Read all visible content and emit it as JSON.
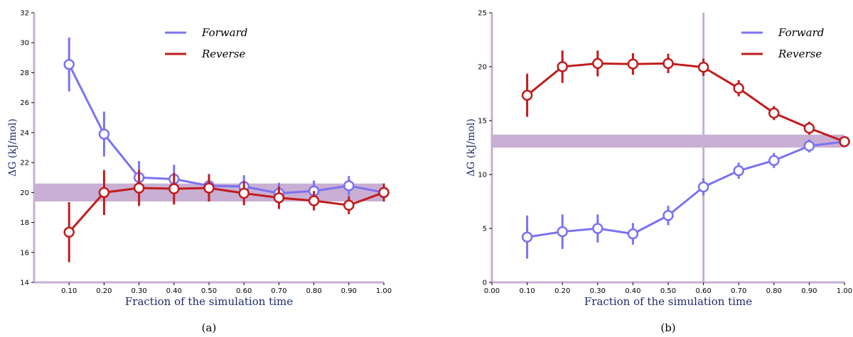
{
  "colors": {
    "forward": "#7b72f0",
    "reverse": "#c01c1c",
    "band": "#c9afd3",
    "axis": "#c9afd3",
    "label": "#1f2a6b"
  },
  "chart_data": [
    {
      "type": "line",
      "caption": "(a)",
      "xlabel": "Fraction of the simulation time",
      "ylabel": "ΔG (kJ/mol)",
      "xlim": [
        0.0,
        1.0
      ],
      "ylim": [
        14,
        32
      ],
      "xticks": [
        "0.10",
        "0.20",
        "0.30",
        "0.40",
        "0.50",
        "0.60",
        "0.70",
        "0.80",
        "0.90",
        "1.00"
      ],
      "yticks": [
        "14",
        "16",
        "18",
        "20",
        "22",
        "24",
        "26",
        "28",
        "30",
        "32"
      ],
      "legend_position": "top-center",
      "band": {
        "y_low": 19.4,
        "y_high": 20.6
      },
      "vline": null,
      "x": [
        0.1,
        0.2,
        0.3,
        0.4,
        0.5,
        0.6,
        0.7,
        0.8,
        0.9,
        1.0
      ],
      "series": [
        {
          "name": "Forward",
          "values": [
            28.55,
            23.9,
            21.0,
            20.9,
            20.45,
            20.4,
            19.95,
            20.1,
            20.45,
            20.0
          ],
          "errors": [
            1.8,
            1.5,
            1.1,
            0.95,
            0.8,
            0.75,
            0.7,
            0.7,
            0.65,
            0.6
          ]
        },
        {
          "name": "Reverse",
          "values": [
            17.35,
            20.0,
            20.3,
            20.25,
            20.3,
            19.95,
            19.65,
            19.45,
            19.15,
            20.0
          ],
          "errors": [
            2.0,
            1.5,
            1.2,
            1.05,
            0.9,
            0.8,
            0.75,
            0.65,
            0.6,
            0.6
          ]
        }
      ]
    },
    {
      "type": "line",
      "caption": "(b)",
      "xlabel": "Fraction of the simulation time",
      "ylabel": "ΔG (kJ/mol)",
      "xlim": [
        0.0,
        1.0
      ],
      "ylim": [
        0,
        25
      ],
      "xticks": [
        "0.00",
        "0.10",
        "0.20",
        "0.30",
        "0.40",
        "0.50",
        "0.60",
        "0.70",
        "0.80",
        "0.90",
        "1.00"
      ],
      "yticks": [
        "0",
        "5",
        "10",
        "15",
        "20",
        "25"
      ],
      "legend_position": "top-right",
      "band": {
        "y_low": 12.5,
        "y_high": 13.7
      },
      "vline": 0.6,
      "x": [
        0.1,
        0.2,
        0.3,
        0.4,
        0.5,
        0.6,
        0.7,
        0.8,
        0.9,
        1.0
      ],
      "series": [
        {
          "name": "Forward",
          "values": [
            4.2,
            4.7,
            5.0,
            4.5,
            6.2,
            8.85,
            10.35,
            11.3,
            12.65,
            13.05
          ],
          "errors": [
            2.0,
            1.6,
            1.3,
            1.0,
            0.9,
            0.8,
            0.75,
            0.7,
            0.6,
            0.5
          ]
        },
        {
          "name": "Reverse",
          "values": [
            17.35,
            20.0,
            20.3,
            20.25,
            20.3,
            19.95,
            18.0,
            15.7,
            14.3,
            13.05
          ],
          "errors": [
            2.0,
            1.5,
            1.2,
            1.0,
            0.9,
            0.8,
            0.75,
            0.65,
            0.6,
            0.5
          ]
        }
      ]
    }
  ]
}
